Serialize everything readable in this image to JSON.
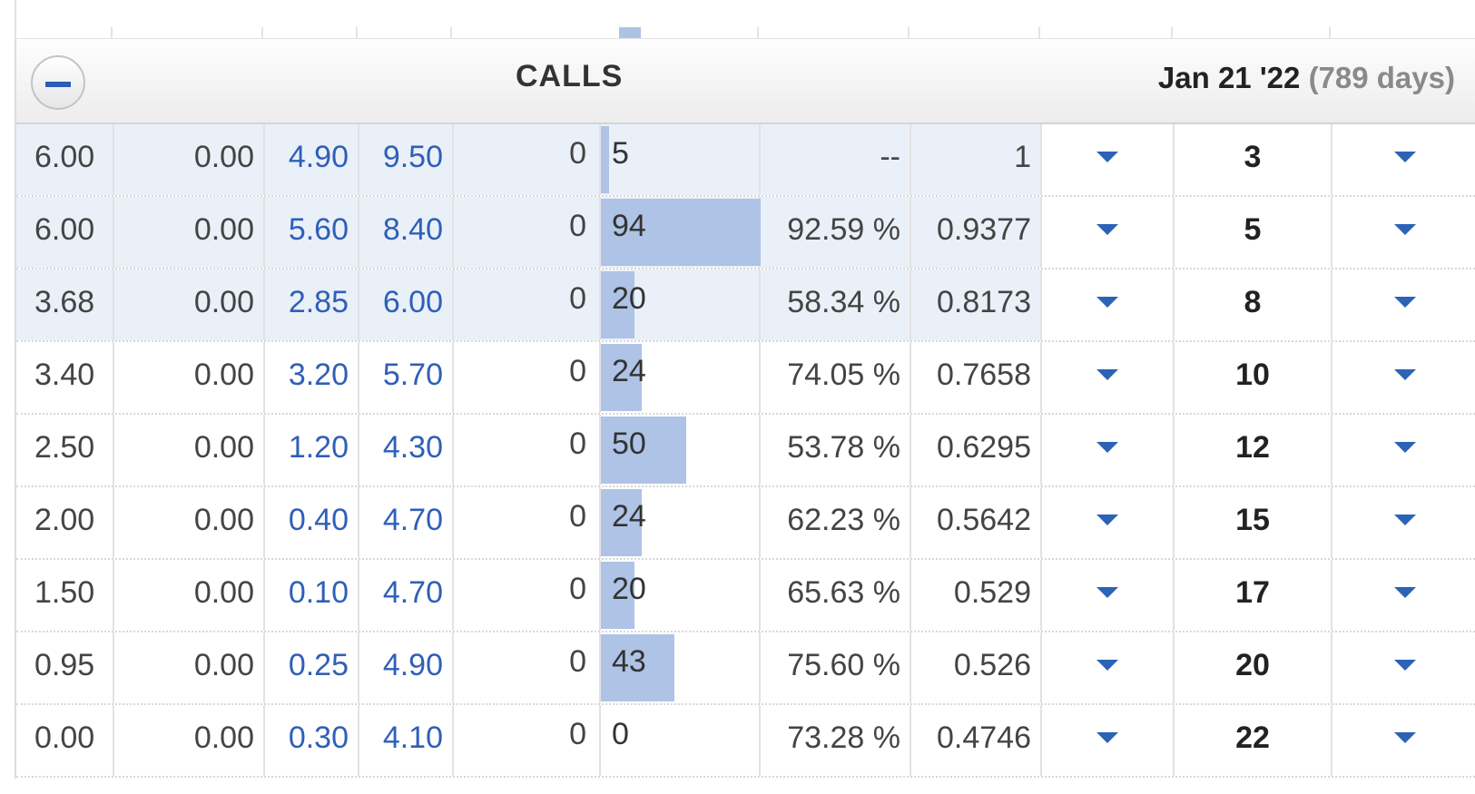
{
  "header": {
    "section_title": "CALLS",
    "expiry_date": "Jan 21 '22",
    "expiry_days": "(789 days)",
    "collapse_icon": "minus-circle-icon"
  },
  "colors": {
    "bid_ask": "#2f5fb8",
    "itm_shade": "#eaf0f8",
    "oi_bar": "#aec3e6",
    "caret": "#2b63b6"
  },
  "open_interest_scale_max": 94,
  "rows": [
    {
      "last": "6.00",
      "change": "0.00",
      "bid": "4.90",
      "ask": "9.50",
      "volume": "0",
      "open_interest": "5",
      "oi_value": 5,
      "iv": "--",
      "delta": "1",
      "strike": "3",
      "itm": true
    },
    {
      "last": "6.00",
      "change": "0.00",
      "bid": "5.60",
      "ask": "8.40",
      "volume": "0",
      "open_interest": "94",
      "oi_value": 94,
      "iv": "92.59 %",
      "delta": "0.9377",
      "strike": "5",
      "itm": true
    },
    {
      "last": "3.68",
      "change": "0.00",
      "bid": "2.85",
      "ask": "6.00",
      "volume": "0",
      "open_interest": "20",
      "oi_value": 20,
      "iv": "58.34 %",
      "delta": "0.8173",
      "strike": "8",
      "itm": true
    },
    {
      "last": "3.40",
      "change": "0.00",
      "bid": "3.20",
      "ask": "5.70",
      "volume": "0",
      "open_interest": "24",
      "oi_value": 24,
      "iv": "74.05 %",
      "delta": "0.7658",
      "strike": "10",
      "itm": false
    },
    {
      "last": "2.50",
      "change": "0.00",
      "bid": "1.20",
      "ask": "4.30",
      "volume": "0",
      "open_interest": "50",
      "oi_value": 50,
      "iv": "53.78 %",
      "delta": "0.6295",
      "strike": "12",
      "itm": false
    },
    {
      "last": "2.00",
      "change": "0.00",
      "bid": "0.40",
      "ask": "4.70",
      "volume": "0",
      "open_interest": "24",
      "oi_value": 24,
      "iv": "62.23 %",
      "delta": "0.5642",
      "strike": "15",
      "itm": false
    },
    {
      "last": "1.50",
      "change": "0.00",
      "bid": "0.10",
      "ask": "4.70",
      "volume": "0",
      "open_interest": "20",
      "oi_value": 20,
      "iv": "65.63 %",
      "delta": "0.529",
      "strike": "17",
      "itm": false
    },
    {
      "last": "0.95",
      "change": "0.00",
      "bid": "0.25",
      "ask": "4.90",
      "volume": "0",
      "open_interest": "43",
      "oi_value": 43,
      "iv": "75.60 %",
      "delta": "0.526",
      "strike": "20",
      "itm": false
    },
    {
      "last": "0.00",
      "change": "0.00",
      "bid": "0.30",
      "ask": "4.10",
      "volume": "0",
      "open_interest": "0",
      "oi_value": 0,
      "iv": "73.28 %",
      "delta": "0.4746",
      "strike": "22",
      "itm": false
    }
  ]
}
